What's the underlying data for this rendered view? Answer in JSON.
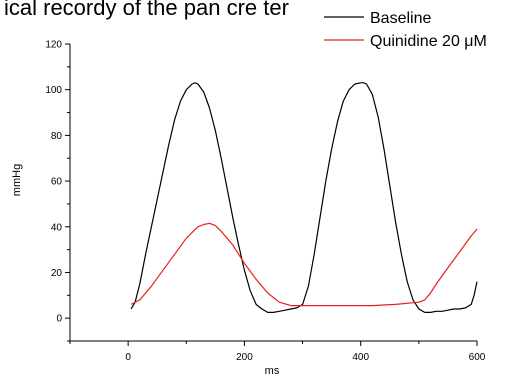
{
  "header": {
    "cut_title": "ical recordy of the pan cre ter"
  },
  "chart_data": {
    "type": "line",
    "xlabel": "ms",
    "ylabel": "mmHg",
    "xlim": [
      -100,
      600
    ],
    "ylim": [
      -10,
      120
    ],
    "xticks": [
      0,
      200,
      400,
      600
    ],
    "yticks": [
      0,
      20,
      40,
      60,
      80,
      100,
      120
    ],
    "legend_position": "top-right",
    "grid": false,
    "series": [
      {
        "name": "Baseline",
        "color": "#000000",
        "x": [
          5,
          12,
          20,
          30,
          40,
          50,
          60,
          70,
          80,
          90,
          100,
          110,
          115,
          120,
          130,
          140,
          150,
          160,
          170,
          180,
          190,
          200,
          210,
          220,
          230,
          240,
          250,
          260,
          270,
          280,
          290,
          300,
          310,
          320,
          330,
          340,
          350,
          360,
          370,
          380,
          390,
          400,
          405,
          410,
          420,
          430,
          440,
          450,
          460,
          470,
          480,
          490,
          500,
          510,
          520,
          530,
          540,
          550,
          560,
          570,
          580,
          590,
          595,
          600
        ],
        "y": [
          4,
          7,
          15,
          28,
          40,
          52,
          64,
          76,
          87,
          95,
          100,
          102.5,
          103,
          102.5,
          99,
          92,
          82,
          70,
          57,
          44,
          32,
          21,
          12,
          6,
          4,
          2.5,
          2.5,
          3,
          3.5,
          4,
          4.5,
          6,
          14,
          28,
          44,
          60,
          74,
          86,
          95,
          100,
          102.5,
          103,
          103,
          102.5,
          98,
          88,
          74,
          58,
          42,
          28,
          16,
          8,
          4,
          2.5,
          2.5,
          3,
          3,
          3.5,
          4,
          4,
          4.5,
          6,
          10,
          16
        ]
      },
      {
        "name": "Quinidine 20 μM",
        "color": "#e8201e",
        "x": [
          5,
          20,
          40,
          60,
          80,
          100,
          120,
          130,
          140,
          150,
          160,
          180,
          200,
          220,
          240,
          260,
          280,
          300,
          340,
          380,
          420,
          460,
          500,
          510,
          520,
          530,
          540,
          550,
          560,
          570,
          580,
          590,
          600
        ],
        "y": [
          6,
          8,
          14,
          21,
          28,
          35,
          40,
          41,
          41.5,
          40.5,
          38,
          32,
          24,
          17,
          11,
          7,
          5.5,
          5.5,
          5.5,
          5.5,
          5.5,
          6,
          7,
          8,
          11,
          15,
          18.5,
          22,
          25.5,
          29,
          32.5,
          36,
          39
        ]
      }
    ]
  }
}
